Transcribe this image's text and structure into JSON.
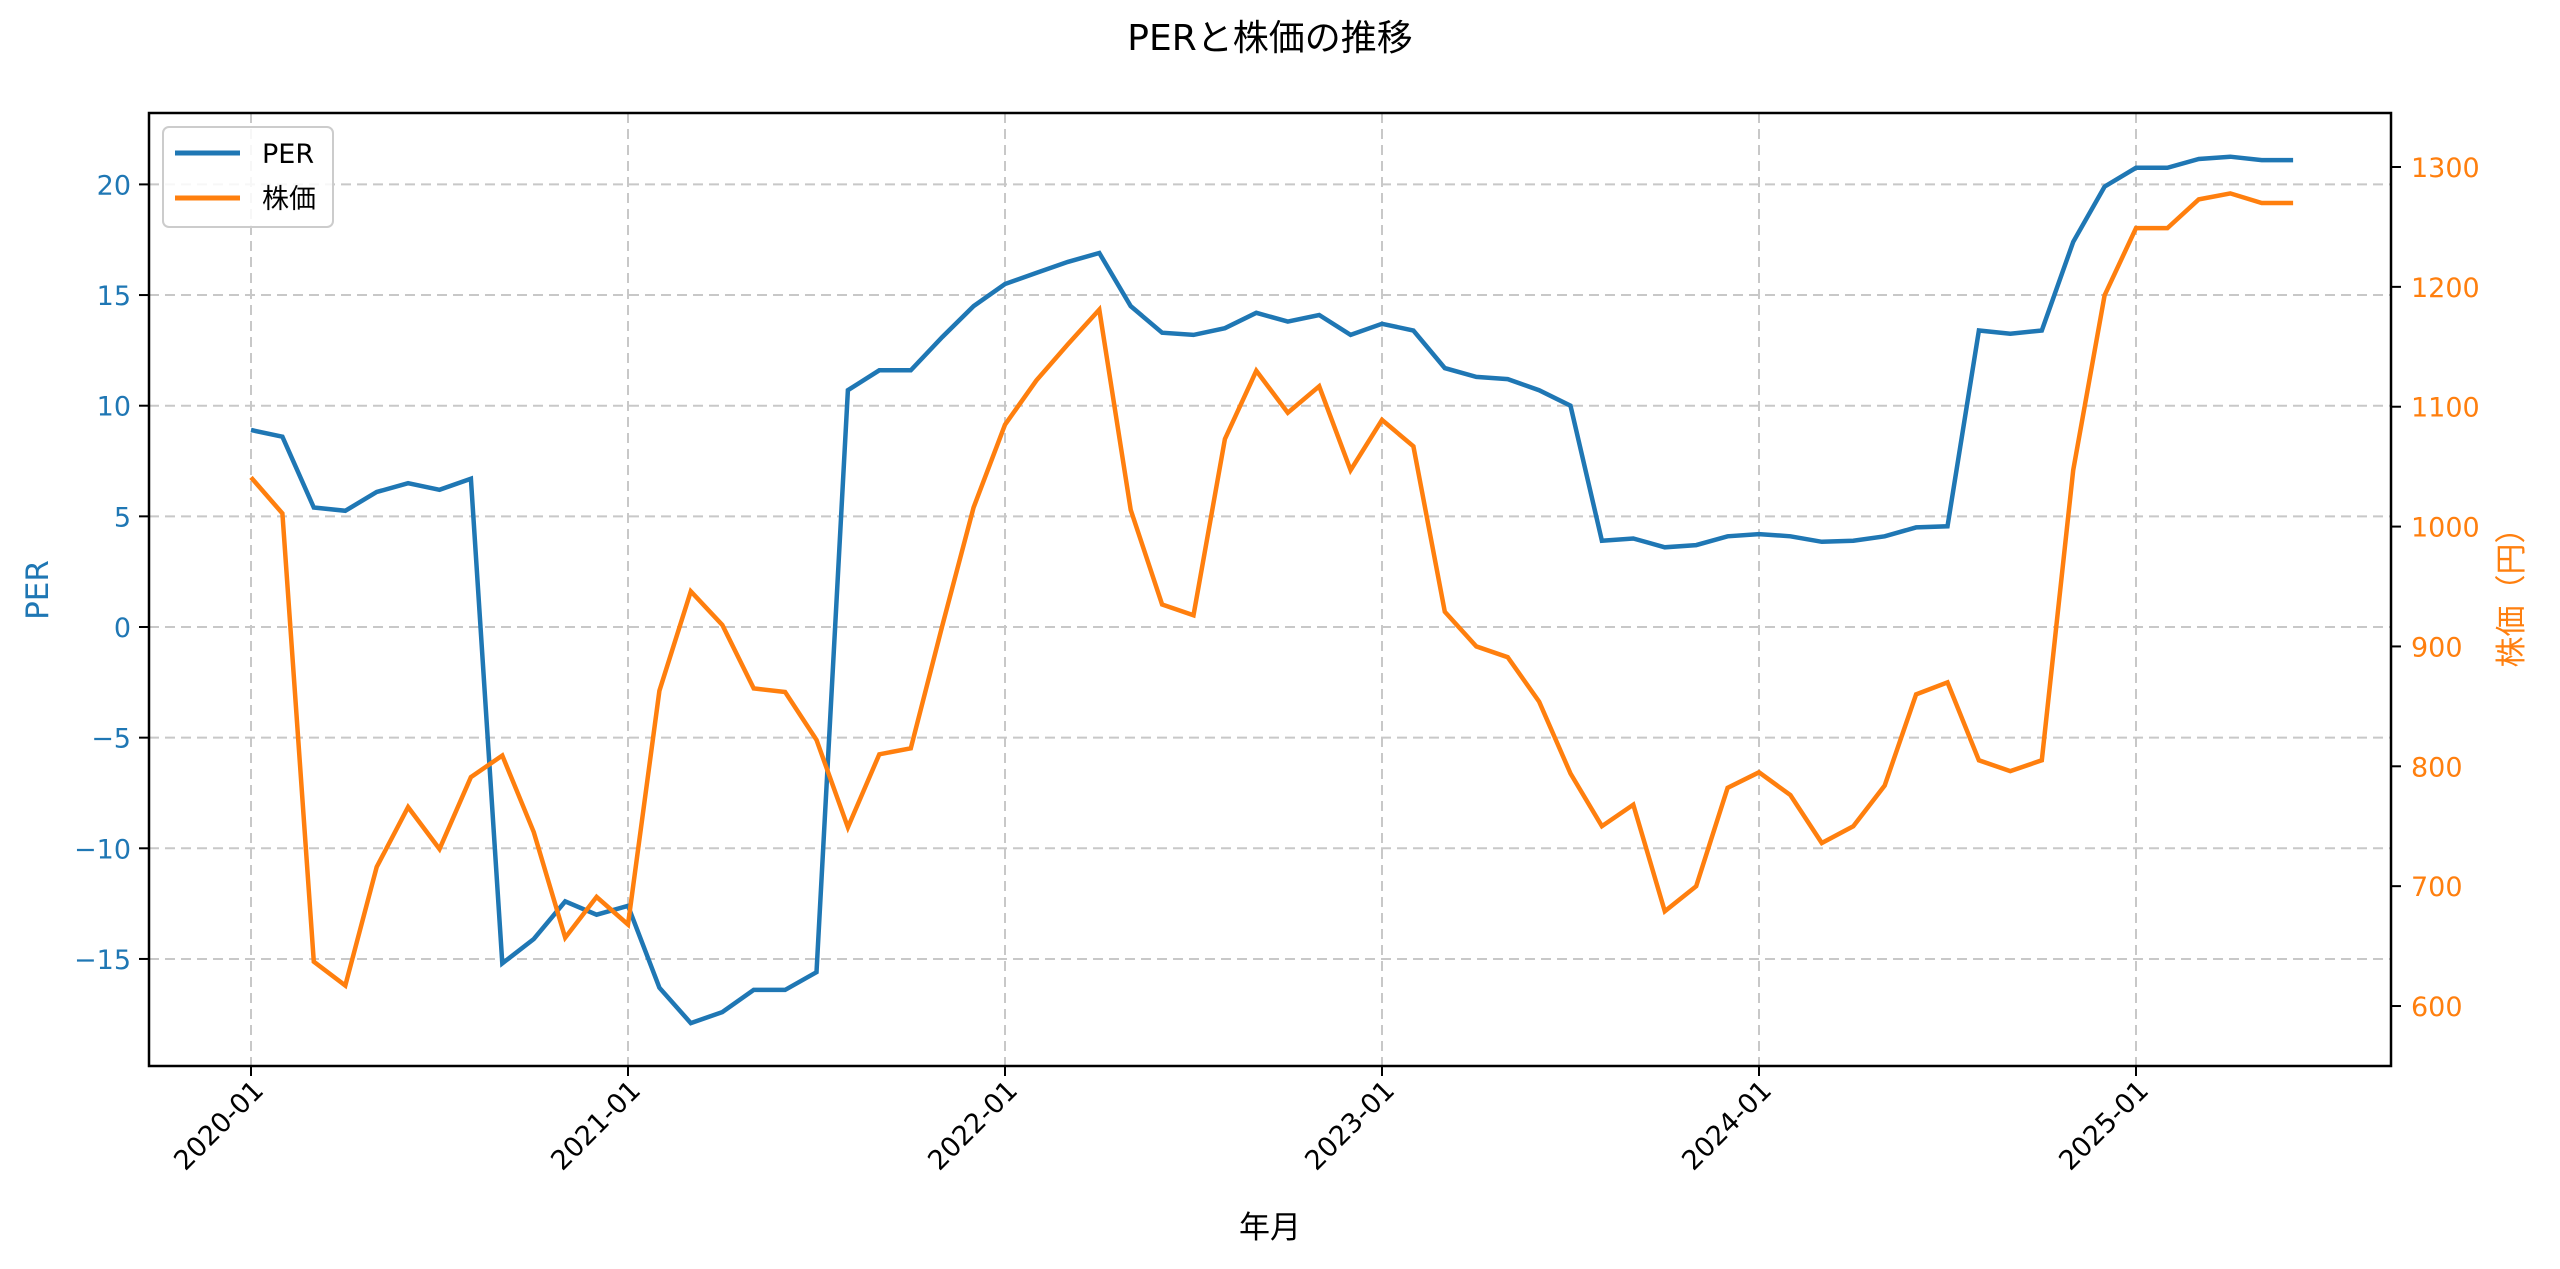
{
  "chart_data": {
    "type": "line",
    "title": "PERと株価の推移",
    "xlabel": "年月",
    "ylabel_left": "PER",
    "ylabel_right": "株価（円）",
    "x_ticks": [
      "2020-01",
      "2021-01",
      "2022-01",
      "2023-01",
      "2024-01",
      "2025-01"
    ],
    "y_left_ticks": [
      -15,
      -10,
      -5,
      0,
      5,
      10,
      15,
      20
    ],
    "y_right_ticks": [
      600,
      700,
      800,
      900,
      1000,
      1100,
      1200,
      1300
    ],
    "ylim_left": [
      -19.7,
      23.2
    ],
    "ylim_right": [
      553,
      1354
    ],
    "grid": true,
    "legend_position": "upper left",
    "x": [
      "2020-01",
      "2020-02",
      "2020-03",
      "2020-04",
      "2020-05",
      "2020-06",
      "2020-07",
      "2020-08",
      "2020-09",
      "2020-10",
      "2020-11",
      "2020-12",
      "2021-01",
      "2021-02",
      "2021-03",
      "2021-04",
      "2021-05",
      "2021-06",
      "2021-07",
      "2021-08",
      "2021-09",
      "2021-10",
      "2021-11",
      "2021-12",
      "2022-01",
      "2022-02",
      "2022-03",
      "2022-04",
      "2022-05",
      "2022-06",
      "2022-07",
      "2022-08",
      "2022-09",
      "2022-10",
      "2022-11",
      "2022-12",
      "2023-01",
      "2023-02",
      "2023-03",
      "2023-04",
      "2023-05",
      "2023-06",
      "2023-07",
      "2023-08",
      "2023-09",
      "2023-10",
      "2023-11",
      "2023-12",
      "2024-01",
      "2024-02",
      "2024-03",
      "2024-04",
      "2024-05",
      "2024-06",
      "2024-07",
      "2024-08",
      "2024-09",
      "2024-10",
      "2024-11",
      "2024-12",
      "2025-01",
      "2025-02",
      "2025-03",
      "2025-04",
      "2025-05",
      "2025-06"
    ],
    "series": [
      {
        "name": "PER",
        "axis": "left",
        "color": "#1f77b4",
        "values": [
          8.9,
          8.6,
          5.4,
          5.25,
          6.1,
          6.5,
          6.2,
          6.7,
          -15.2,
          -14.1,
          -12.4,
          -13.0,
          -12.6,
          -16.3,
          -17.9,
          -17.4,
          -16.4,
          -16.4,
          -15.6,
          10.7,
          11.6,
          11.6,
          13.1,
          14.5,
          15.5,
          16.0,
          16.5,
          16.9,
          14.5,
          13.3,
          13.2,
          13.5,
          14.2,
          13.8,
          14.1,
          13.2,
          13.7,
          13.4,
          11.7,
          11.3,
          11.2,
          10.7,
          10.0,
          3.9,
          4.0,
          3.6,
          3.7,
          4.1,
          4.2,
          4.1,
          3.85,
          3.9,
          4.1,
          4.5,
          4.55,
          13.4,
          13.25,
          13.4,
          17.4,
          19.9,
          20.75,
          20.75,
          21.15,
          21.25,
          21.1,
          21.1
        ]
      },
      {
        "name": "株価",
        "axis": "right",
        "color": "#ff7f0e",
        "values": [
          1041,
          1011,
          637,
          617,
          716,
          766,
          731,
          791,
          809,
          745,
          657,
          691,
          668,
          863,
          946,
          918,
          865,
          862,
          822,
          749,
          810,
          815,
          917,
          1016,
          1085,
          1122,
          1152,
          1181,
          1014,
          935,
          926,
          1073,
          1130,
          1095,
          1117,
          1047,
          1089,
          1067,
          929,
          900,
          891,
          854,
          794,
          750,
          768,
          679,
          700,
          782,
          795,
          776,
          736,
          750,
          784,
          860,
          870,
          805,
          796,
          805,
          1047,
          1193,
          1249,
          1249,
          1273,
          1278,
          1270,
          1270
        ]
      }
    ]
  },
  "legend": {
    "items": [
      {
        "label": "PER",
        "color": "#1f77b4"
      },
      {
        "label": "株価",
        "color": "#ff7f0e"
      }
    ]
  },
  "colors": {
    "left_axis": "#1f77b4",
    "right_axis": "#ff7f0e",
    "grid": "#c8c8c8"
  }
}
